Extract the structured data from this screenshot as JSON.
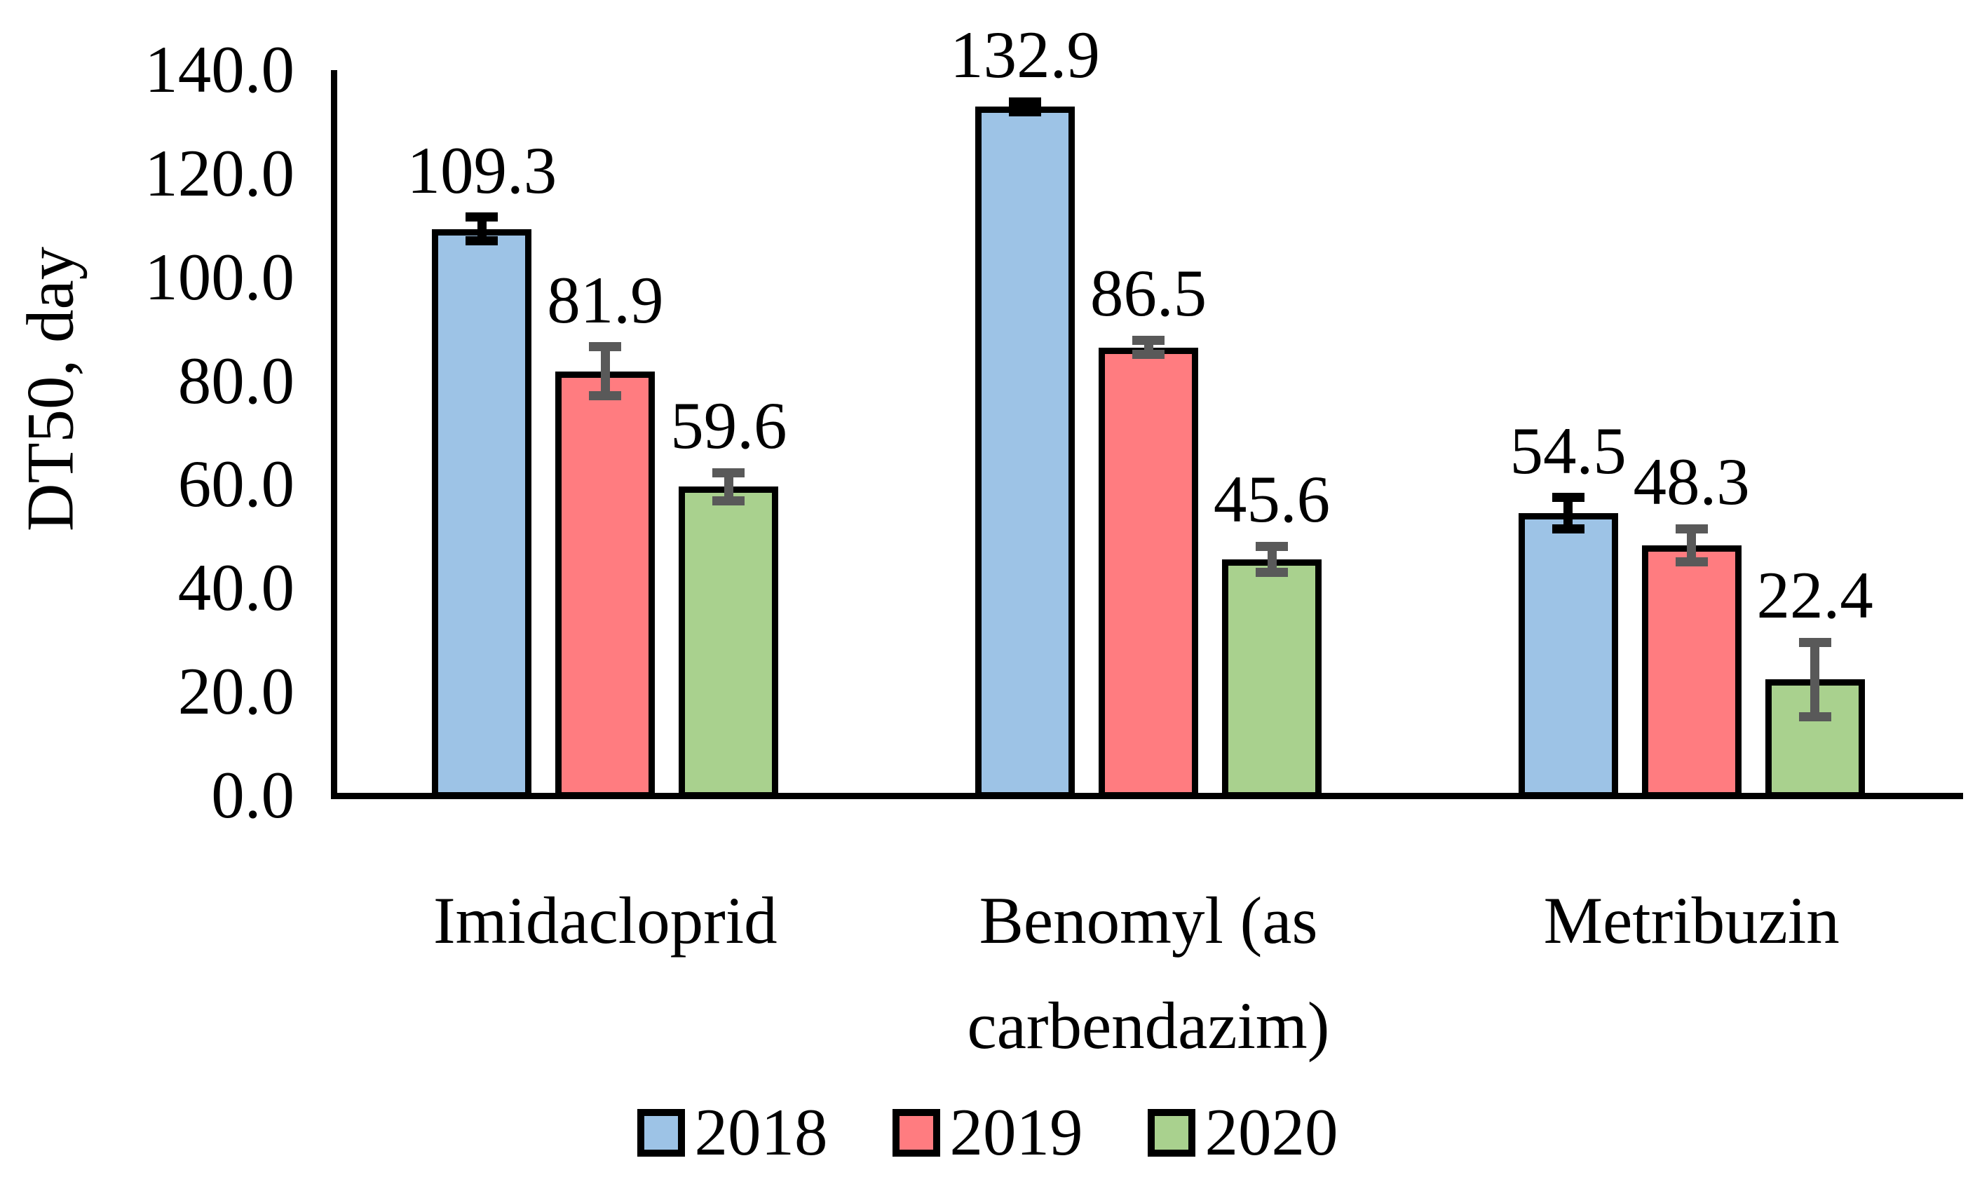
{
  "chart_data": {
    "type": "bar",
    "title": "",
    "ylabel": "DT50, day",
    "xlabel": "",
    "categories": [
      "Imidacloprid",
      "Benomyl (as carbendazim)",
      "Metribuzin"
    ],
    "category_display_lines": [
      "Imidacloprid",
      "Benomyl (as\ncarbendazim)",
      "Metribuzin"
    ],
    "series": [
      {
        "name": "2018",
        "color": "#9DC3E6",
        "error_bar_color": "#000000",
        "values": [
          109.3,
          132.9,
          54.5
        ],
        "errors": [
          2.3,
          1.0,
          3.0
        ]
      },
      {
        "name": "2019",
        "color": "#FF7C80",
        "error_bar_color": "#595959",
        "values": [
          81.9,
          86.5,
          48.3
        ],
        "errors": [
          4.7,
          1.4,
          3.2
        ]
      },
      {
        "name": "2020",
        "color": "#A9D18E",
        "error_bar_color": "#595959",
        "values": [
          59.6,
          45.6,
          22.4
        ],
        "errors": [
          2.7,
          2.5,
          7.2
        ]
      }
    ],
    "value_labels": {
      "2018": [
        "109.3",
        "132.9",
        "54.5"
      ],
      "2019": [
        "81.9",
        "86.5",
        "48.3"
      ],
      "2020": [
        "59.6",
        "45.6",
        "22.4"
      ]
    },
    "ylim": [
      0,
      140
    ],
    "ytick_step": 20,
    "ytick_labels": [
      "0.0",
      "20.0",
      "40.0",
      "60.0",
      "80.0",
      "100.0",
      "120.0",
      "140.0"
    ],
    "grid": false,
    "legend_position": "bottom",
    "bar_border_color": "#000000",
    "axis_color": "#000000",
    "background_color": "#FFFFFF"
  }
}
